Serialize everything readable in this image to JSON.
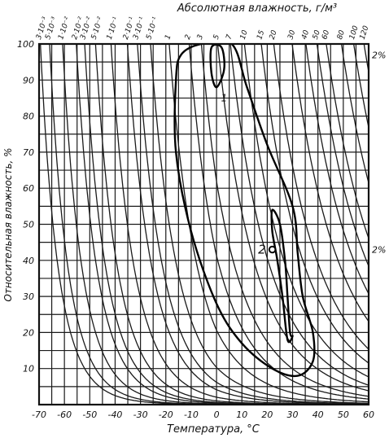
{
  "chart_data": {
    "type": "line",
    "title": "Абсолютная влажность, г/м³",
    "xlabel": "Температура, °С",
    "ylabel": "Относительная влажность, %",
    "xlim": [
      -70,
      60
    ],
    "ylim": [
      0,
      100
    ],
    "grid": true,
    "x_ticks": [
      "-70",
      "-60",
      "-50",
      "-40",
      "-30",
      "-20",
      "-10",
      "0",
      "10",
      "20",
      "30",
      "40",
      "50",
      "60"
    ],
    "y_ticks": [
      "10",
      "20",
      "30",
      "40",
      "50",
      "60",
      "70",
      "80",
      "90",
      "100"
    ],
    "abs_humidity_labels": [
      "3·10⁻³",
      "5·10⁻³",
      "1·10⁻²",
      "2·10⁻²",
      "3·10⁻²",
      "5·10⁻²",
      "1·10⁻¹",
      "2·10⁻¹",
      "3·10⁻¹",
      "5·10⁻¹",
      "1",
      "2",
      "3",
      "5",
      "7",
      "10",
      "15",
      "20",
      "30",
      "40",
      "50",
      "60",
      "80",
      "100",
      "120"
    ],
    "abs_humidity_values": [
      0.003,
      0.005,
      0.01,
      0.02,
      0.03,
      0.05,
      0.1,
      0.2,
      0.3,
      0.5,
      1,
      2,
      3,
      5,
      7,
      10,
      15,
      20,
      30,
      40,
      50,
      60,
      80,
      100,
      120
    ],
    "contours": [
      {
        "label": "1",
        "outer": [
          [
            -14,
            97
          ],
          [
            -6,
            100
          ],
          [
            6,
            100
          ],
          [
            12,
            88
          ],
          [
            20,
            72
          ],
          [
            30,
            55
          ],
          [
            32,
            42
          ],
          [
            34,
            30
          ],
          [
            38,
            20
          ],
          [
            38,
            12
          ],
          [
            32,
            8
          ],
          [
            22,
            10
          ],
          [
            10,
            17
          ],
          [
            0,
            28
          ],
          [
            -10,
            48
          ],
          [
            -16,
            70
          ],
          [
            -16,
            90
          ]
        ],
        "inner": [
          [
            -2,
            99
          ],
          [
            2,
            99
          ],
          [
            3,
            93
          ],
          [
            0,
            88
          ],
          [
            -2,
            92
          ]
        ]
      },
      {
        "label": "2",
        "outer": [
          [
            22,
            54
          ],
          [
            25,
            50
          ],
          [
            27,
            40
          ],
          [
            28,
            30
          ],
          [
            29,
            20
          ],
          [
            30,
            19
          ],
          [
            28,
            18
          ],
          [
            26,
            30
          ],
          [
            24,
            40
          ],
          [
            22,
            48
          ]
        ],
        "center": [
          22,
          43
        ]
      }
    ],
    "side_labels": [
      "2%",
      "2%"
    ]
  }
}
